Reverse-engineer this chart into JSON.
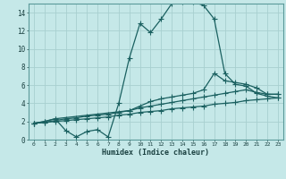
{
  "xlabel": "Humidex (Indice chaleur)",
  "bg_color": "#c5e8e8",
  "grid_color": "#a8d0d0",
  "line_color": "#1a6060",
  "xlim": [
    -0.5,
    23.5
  ],
  "ylim": [
    0,
    15
  ],
  "xticks": [
    0,
    1,
    2,
    3,
    4,
    5,
    6,
    7,
    8,
    9,
    10,
    11,
    12,
    13,
    14,
    15,
    16,
    17,
    18,
    19,
    20,
    21,
    22,
    23
  ],
  "yticks": [
    0,
    2,
    4,
    6,
    8,
    10,
    12,
    14
  ],
  "line1_x": [
    0,
    1,
    2,
    3,
    4,
    5,
    6,
    7,
    8,
    9,
    10,
    11,
    12,
    13,
    14,
    15,
    16,
    17,
    18,
    19,
    20,
    21,
    22,
    23
  ],
  "line1_y": [
    1.8,
    2.0,
    2.3,
    1.0,
    0.3,
    0.9,
    1.1,
    0.3,
    4.0,
    9.0,
    12.8,
    11.8,
    13.3,
    15.0,
    15.2,
    15.2,
    14.8,
    13.3,
    7.3,
    6.1,
    5.9,
    5.1,
    4.8,
    4.6
  ],
  "line2_x": [
    0,
    1,
    2,
    9,
    10,
    11,
    12,
    13,
    14,
    15,
    16,
    17,
    18,
    19,
    20,
    21,
    22,
    23
  ],
  "line2_y": [
    1.8,
    2.0,
    2.3,
    3.2,
    3.7,
    4.2,
    4.5,
    4.7,
    4.9,
    5.1,
    5.5,
    7.3,
    6.5,
    6.3,
    6.1,
    5.7,
    5.0,
    5.0
  ],
  "line3_x": [
    0,
    1,
    2,
    3,
    4,
    5,
    6,
    7,
    8,
    9,
    10,
    11,
    12,
    13,
    14,
    15,
    16,
    17,
    18,
    19,
    20,
    21,
    22,
    23
  ],
  "line3_y": [
    1.8,
    1.9,
    2.1,
    2.3,
    2.4,
    2.6,
    2.7,
    2.8,
    3.0,
    3.2,
    3.5,
    3.7,
    3.9,
    4.1,
    4.3,
    4.5,
    4.7,
    4.9,
    5.1,
    5.3,
    5.5,
    5.2,
    5.0,
    5.0
  ],
  "line4_x": [
    0,
    1,
    2,
    3,
    4,
    5,
    6,
    7,
    8,
    9,
    10,
    11,
    12,
    13,
    14,
    15,
    16,
    17,
    18,
    19,
    20,
    21,
    22,
    23
  ],
  "line4_y": [
    1.8,
    1.9,
    2.0,
    2.1,
    2.2,
    2.3,
    2.4,
    2.5,
    2.7,
    2.8,
    3.0,
    3.1,
    3.2,
    3.4,
    3.5,
    3.6,
    3.7,
    3.9,
    4.0,
    4.1,
    4.3,
    4.4,
    4.5,
    4.6
  ]
}
